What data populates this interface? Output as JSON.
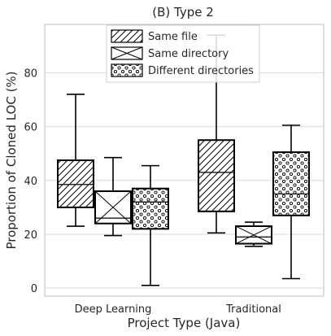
{
  "chart_data": {
    "type": "box",
    "title": "(B) Type 2",
    "xlabel": "Project Type (Java)",
    "ylabel": "Proportion of Cloned LOC (%)",
    "ylim": [
      -3,
      98
    ],
    "yticks": [
      0,
      20,
      40,
      60,
      80
    ],
    "grid": true,
    "legend_position": "top-center",
    "categories": [
      "Deep Learning",
      "Traditional"
    ],
    "series": [
      {
        "name": "Same file",
        "pattern": "diagonal-hatch",
        "boxes": [
          {
            "category": "Deep Learning",
            "min": 23,
            "q1": 30,
            "median": 38.5,
            "q3": 47.5,
            "max": 72
          },
          {
            "category": "Traditional",
            "min": 20.5,
            "q1": 28.5,
            "median": 43,
            "q3": 55,
            "max": 94
          }
        ]
      },
      {
        "name": "Same directory",
        "pattern": "cross-hatch",
        "boxes": [
          {
            "category": "Deep Learning",
            "min": 19.5,
            "q1": 24,
            "median": 26,
            "q3": 36,
            "max": 48.5
          },
          {
            "category": "Traditional",
            "min": 15.5,
            "q1": 16.5,
            "median": 19,
            "q3": 23,
            "max": 24.5
          }
        ]
      },
      {
        "name": "Different directories",
        "pattern": "dots",
        "boxes": [
          {
            "category": "Deep Learning",
            "min": 1,
            "q1": 22,
            "median": 32,
            "q3": 37,
            "max": 45.5
          },
          {
            "category": "Traditional",
            "min": 3.5,
            "q1": 27,
            "median": 35,
            "q3": 50.5,
            "max": 60.5
          }
        ]
      }
    ]
  }
}
